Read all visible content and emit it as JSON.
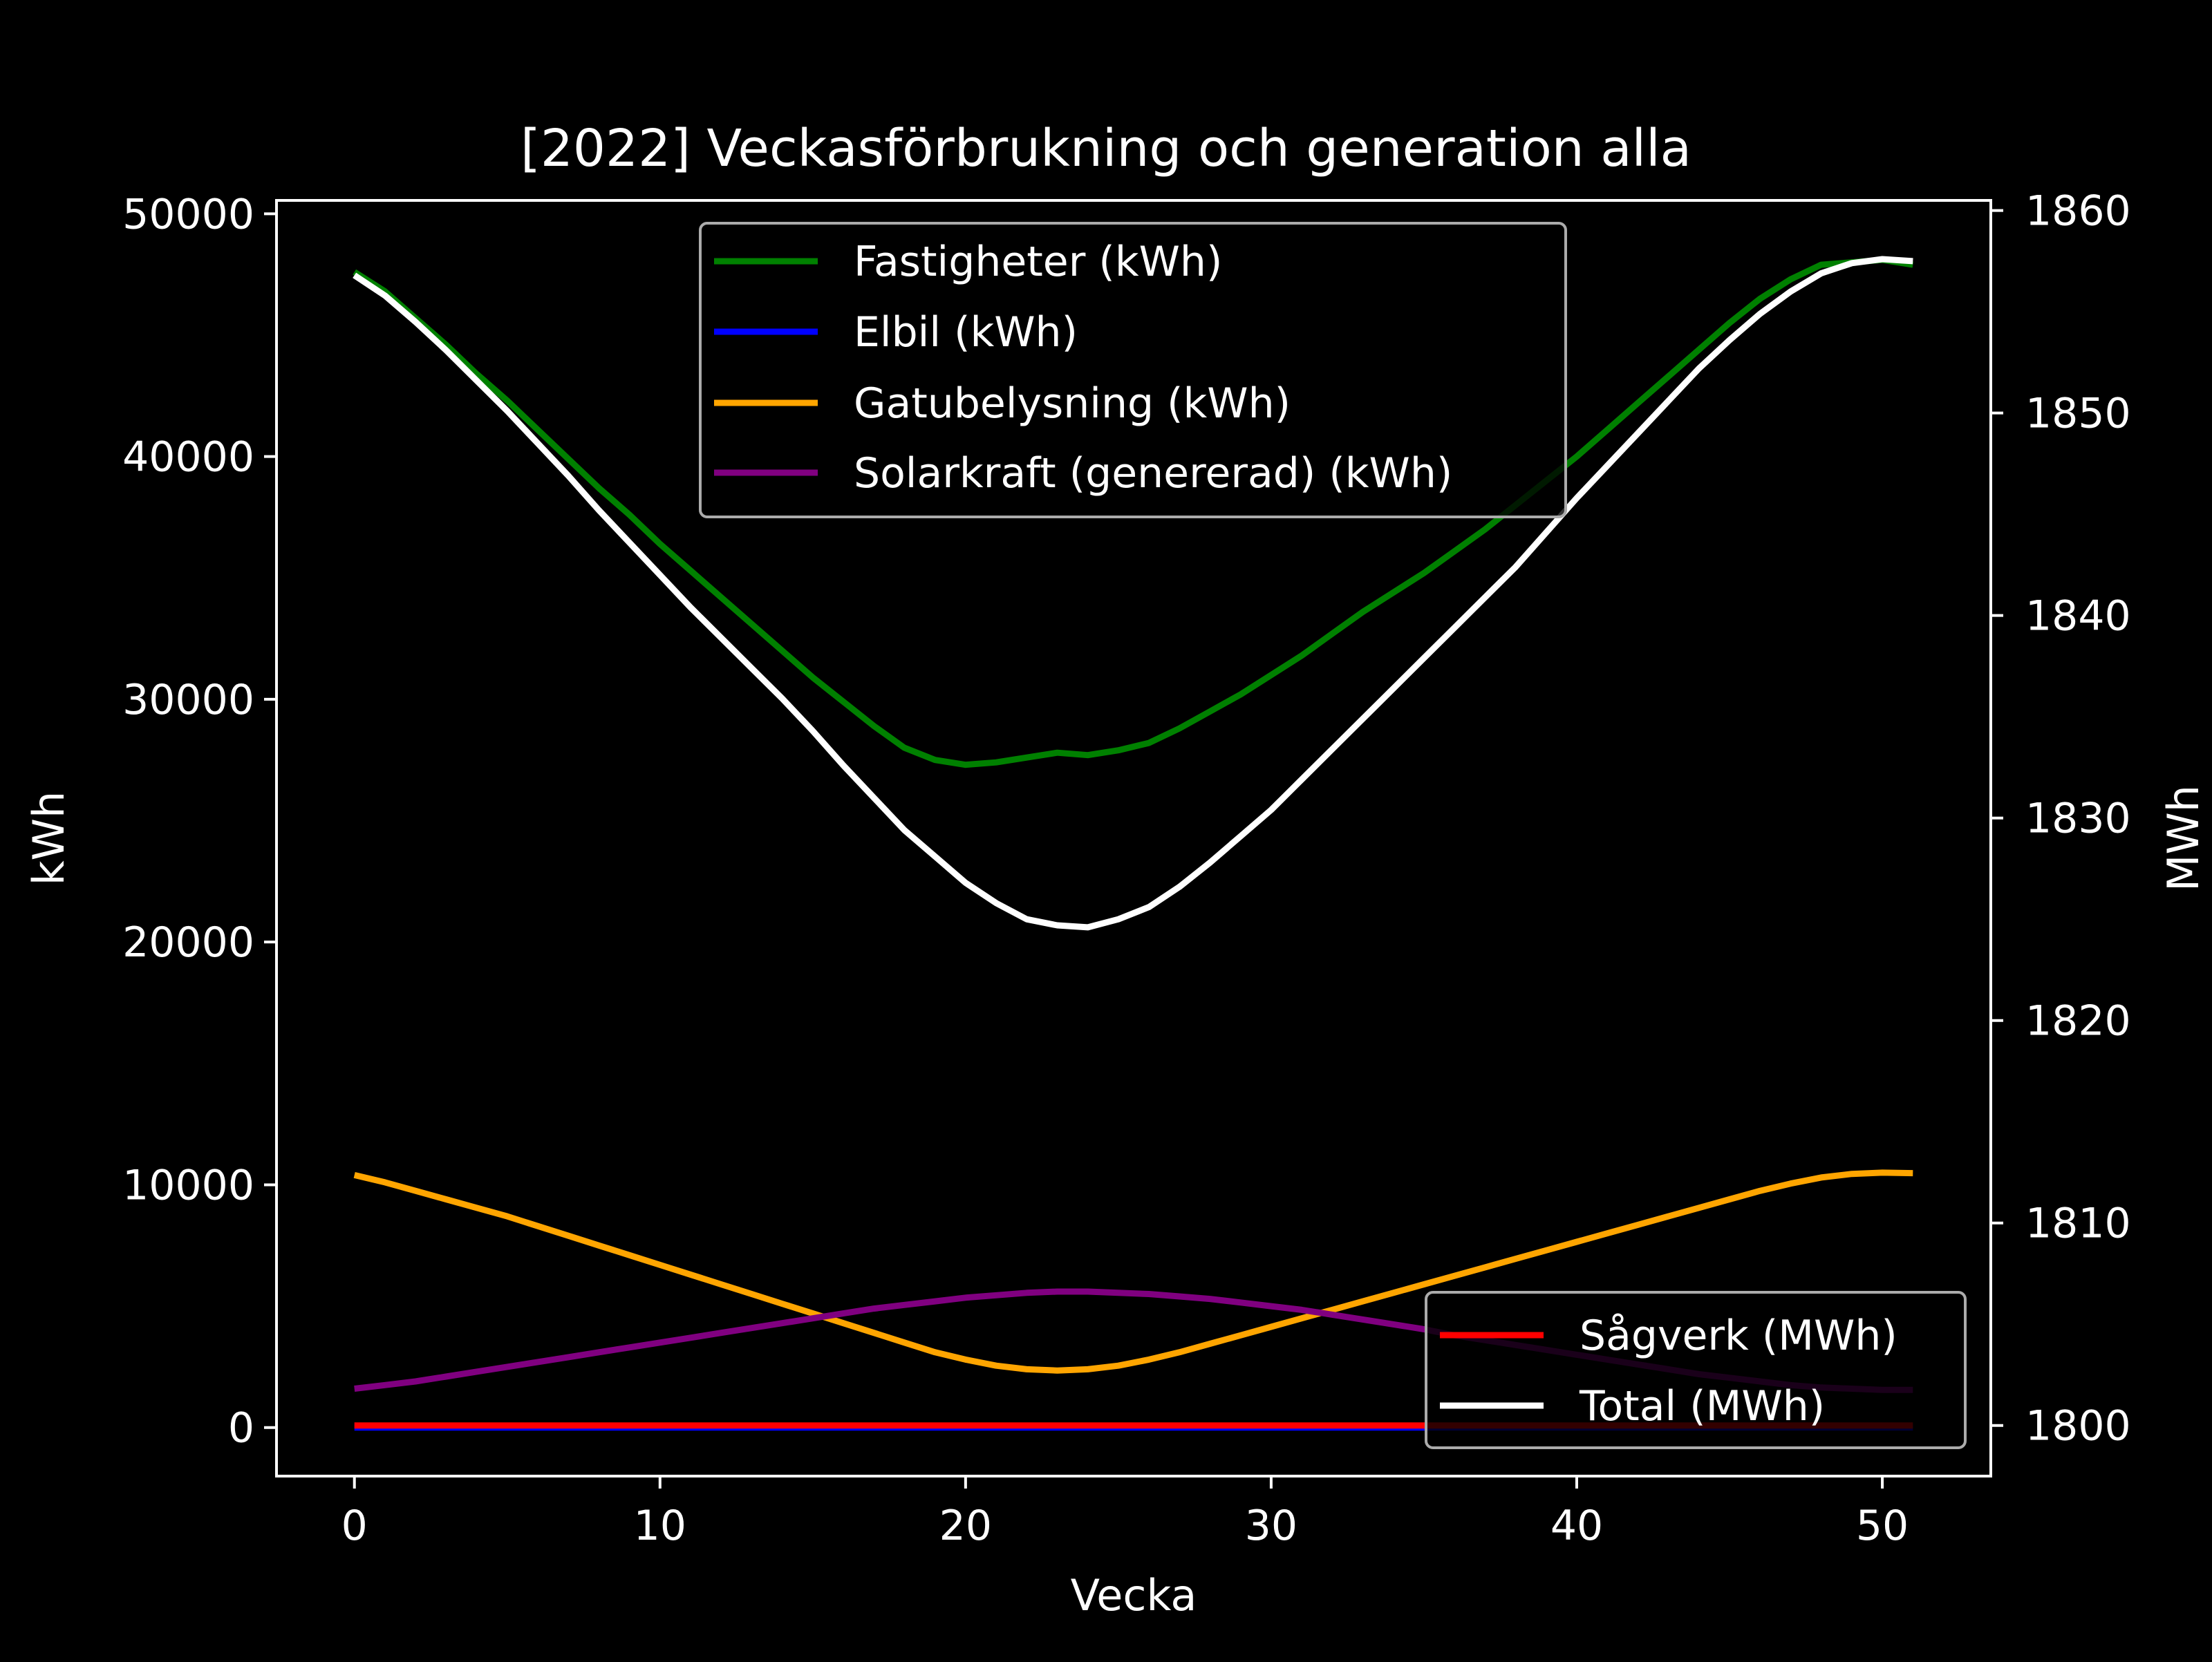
{
  "chart_data": {
    "type": "line",
    "title": "[2022] Veckasförbrukning och generation alla",
    "xlabel": "Vecka",
    "ylabel_left": "kWh",
    "ylabel_right": "MWh",
    "xlim": [
      -2.55,
      53.55
    ],
    "ylim_left": [
      -2000,
      50550
    ],
    "ylim_right": [
      1797.5,
      1860.5
    ],
    "x_ticks": [
      0,
      10,
      20,
      30,
      40,
      50
    ],
    "y_ticks_left": [
      0,
      10000,
      20000,
      30000,
      40000,
      50000
    ],
    "y_ticks_right": [
      1800,
      1810,
      1820,
      1830,
      1840,
      1850,
      1860
    ],
    "x": [
      0,
      1,
      2,
      3,
      4,
      5,
      6,
      7,
      8,
      9,
      10,
      11,
      12,
      13,
      14,
      15,
      16,
      17,
      18,
      19,
      20,
      21,
      22,
      23,
      24,
      25,
      26,
      27,
      28,
      29,
      30,
      31,
      32,
      33,
      34,
      35,
      36,
      37,
      38,
      39,
      40,
      41,
      42,
      43,
      44,
      45,
      46,
      47,
      48,
      49,
      50,
      51
    ],
    "series": [
      {
        "name": "Fastigheter (kWh)",
        "color": "#008000",
        "axis": "left",
        "values": [
          47600,
          46800,
          45700,
          44600,
          43400,
          42300,
          41100,
          39900,
          38700,
          37600,
          36400,
          35300,
          34200,
          33100,
          32000,
          30900,
          29900,
          28900,
          28000,
          27500,
          27300,
          27400,
          27600,
          27800,
          27700,
          27900,
          28200,
          28800,
          29500,
          30200,
          31000,
          31800,
          32700,
          33600,
          34400,
          35200,
          36100,
          37000,
          38000,
          39000,
          40000,
          41100,
          42200,
          43300,
          44400,
          45500,
          46500,
          47300,
          47900,
          48000,
          48100,
          47900
        ]
      },
      {
        "name": "Elbil (kWh)",
        "color": "#0000ff",
        "axis": "left",
        "values": [
          0,
          0,
          0,
          0,
          0,
          0,
          0,
          0,
          0,
          0,
          0,
          0,
          0,
          0,
          0,
          0,
          0,
          0,
          0,
          0,
          0,
          0,
          0,
          0,
          0,
          0,
          0,
          0,
          0,
          0,
          0,
          0,
          0,
          0,
          0,
          0,
          0,
          0,
          0,
          0,
          0,
          0,
          0,
          0,
          0,
          0,
          0,
          0,
          0,
          0,
          0,
          0
        ]
      },
      {
        "name": "Gatubelysning (kWh)",
        "color": "#ffa500",
        "axis": "left",
        "values": [
          10400,
          10100,
          9750,
          9400,
          9050,
          8700,
          8300,
          7900,
          7500,
          7100,
          6700,
          6300,
          5900,
          5500,
          5100,
          4700,
          4300,
          3900,
          3500,
          3100,
          2800,
          2550,
          2400,
          2350,
          2400,
          2550,
          2800,
          3100,
          3450,
          3800,
          4150,
          4500,
          4850,
          5200,
          5550,
          5900,
          6250,
          6600,
          6950,
          7300,
          7650,
          8000,
          8350,
          8700,
          9050,
          9400,
          9750,
          10050,
          10300,
          10450,
          10500,
          10480
        ]
      },
      {
        "name": "Solarkraft (genererad) (kWh)",
        "color": "#800080",
        "axis": "left",
        "values": [
          1600,
          1750,
          1900,
          2100,
          2300,
          2500,
          2700,
          2900,
          3100,
          3300,
          3500,
          3700,
          3900,
          4100,
          4300,
          4500,
          4700,
          4900,
          5050,
          5200,
          5350,
          5450,
          5550,
          5600,
          5600,
          5550,
          5500,
          5400,
          5300,
          5150,
          5000,
          4850,
          4650,
          4450,
          4250,
          4050,
          3800,
          3600,
          3400,
          3200,
          3000,
          2800,
          2600,
          2400,
          2200,
          2050,
          1900,
          1750,
          1650,
          1600,
          1550,
          1550
        ]
      },
      {
        "name": "Sågverk (MWh)",
        "color": "#ff0000",
        "axis": "right",
        "values": [
          1800,
          1800,
          1800,
          1800,
          1800,
          1800,
          1800,
          1800,
          1800,
          1800,
          1800,
          1800,
          1800,
          1800,
          1800,
          1800,
          1800,
          1800,
          1800,
          1800,
          1800,
          1800,
          1800,
          1800,
          1800,
          1800,
          1800,
          1800,
          1800,
          1800,
          1800,
          1800,
          1800,
          1800,
          1800,
          1800,
          1800,
          1800,
          1800,
          1800,
          1800,
          1800,
          1800,
          1800,
          1800,
          1800,
          1800,
          1800,
          1800,
          1800,
          1800,
          1800
        ]
      },
      {
        "name": "Total (MWh)",
        "color": "#ffffff",
        "axis": "right",
        "values": [
          1856.8,
          1855.8,
          1854.5,
          1853.1,
          1851.6,
          1850.1,
          1848.5,
          1846.9,
          1845.2,
          1843.6,
          1842.0,
          1840.4,
          1838.9,
          1837.4,
          1835.9,
          1834.3,
          1832.6,
          1831.0,
          1829.4,
          1828.1,
          1826.8,
          1825.8,
          1825.0,
          1824.7,
          1824.6,
          1825.0,
          1825.6,
          1826.6,
          1827.8,
          1829.1,
          1830.4,
          1831.9,
          1833.4,
          1834.9,
          1836.4,
          1837.9,
          1839.4,
          1840.9,
          1842.4,
          1844.1,
          1845.8,
          1847.4,
          1849.0,
          1850.6,
          1852.2,
          1853.6,
          1854.9,
          1856.0,
          1856.9,
          1857.4,
          1857.6,
          1857.5
        ]
      }
    ],
    "legend_left_placement": "upper center",
    "legend_right_placement": "lower right",
    "grid": false,
    "background": "#000000",
    "foreground": "#ffffff"
  }
}
